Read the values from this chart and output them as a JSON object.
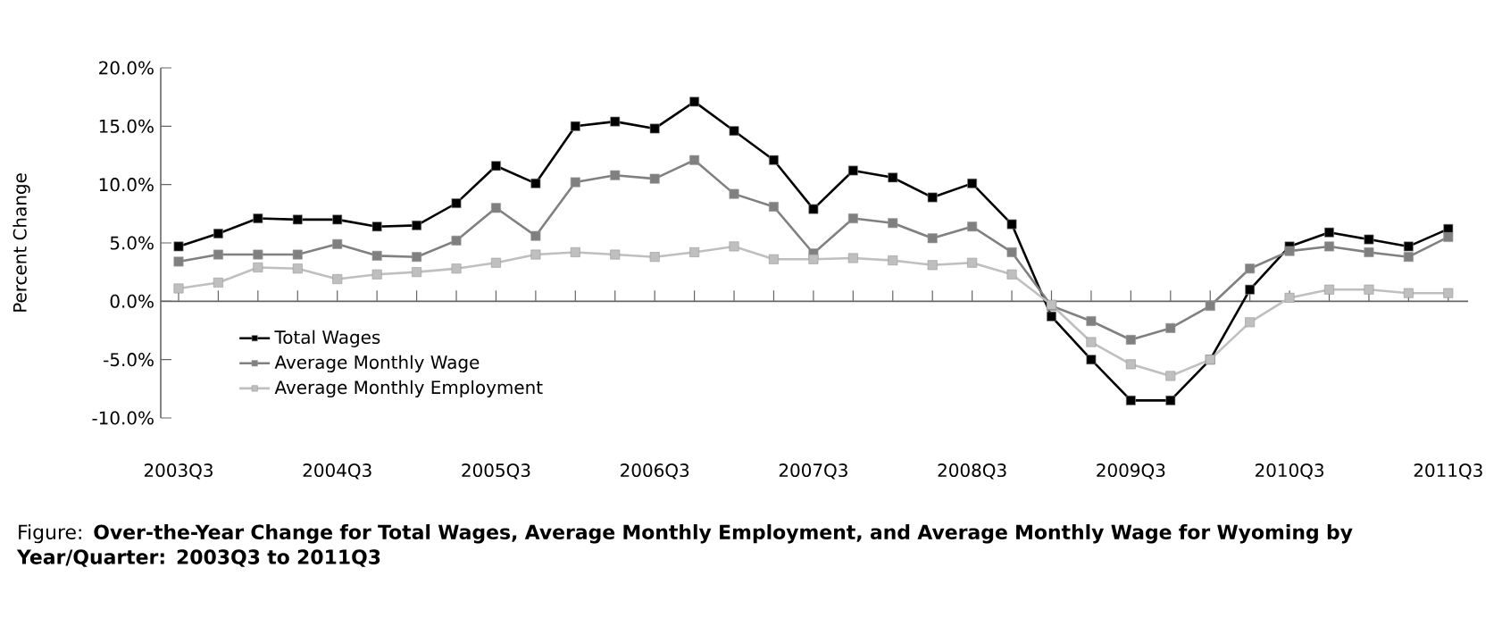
{
  "chart_data": {
    "type": "line",
    "title": "Figure: **Over-the-Year Change for Total Wages, Average Monthly Employment, and Average Monthly Wage for Wyoming by Year/Quarter: 2003Q3 to 2011Q3**",
    "ylabel": "Percent Change",
    "categories": [
      "2003Q3",
      null,
      null,
      null,
      "2004Q3",
      null,
      null,
      null,
      "2005Q3",
      null,
      null,
      null,
      "2006Q3",
      null,
      null,
      null,
      "2007Q3",
      null,
      null,
      null,
      "2008Q3",
      null,
      null,
      null,
      "2009Q3",
      null,
      null,
      null,
      "2010Q3",
      null,
      null,
      null,
      "2011Q3"
    ],
    "series": [
      {
        "name": "Total Wages",
        "color": "#000000",
        "values": [
          4.7,
          5.8,
          7.1,
          7.0,
          7.0,
          6.4,
          6.5,
          8.4,
          11.6,
          10.1,
          15.0,
          15.4,
          14.8,
          17.1,
          14.6,
          12.1,
          7.9,
          11.2,
          10.6,
          8.9,
          10.1,
          6.6,
          -1.3,
          -5.0,
          -8.5,
          -8.5,
          -5.0,
          1.0,
          4.7,
          5.9,
          5.3,
          4.7,
          6.2
        ]
      },
      {
        "name": "Average Monthly Wage",
        "color": "#808080",
        "values": [
          3.4,
          4.0,
          4.0,
          4.0,
          4.9,
          3.9,
          3.8,
          5.2,
          8.0,
          5.6,
          10.2,
          10.8,
          10.5,
          12.1,
          9.2,
          8.1,
          4.1,
          7.1,
          6.7,
          5.4,
          6.4,
          4.2,
          -0.4,
          -1.7,
          -3.3,
          -2.3,
          -0.4,
          2.8,
          4.3,
          4.7,
          4.2,
          3.8,
          5.5
        ]
      },
      {
        "name": "Average Monthly Employment",
        "color": "#bfbfbf",
        "values": [
          1.1,
          1.6,
          2.9,
          2.8,
          1.9,
          2.3,
          2.5,
          2.8,
          3.3,
          4.0,
          4.2,
          4.0,
          3.8,
          4.2,
          4.7,
          3.6,
          3.6,
          3.7,
          3.5,
          3.1,
          3.3,
          2.3,
          -0.3,
          -3.5,
          -5.4,
          -6.4,
          -5.0,
          -1.8,
          0.3,
          1.0,
          1.0,
          0.7,
          0.7
        ]
      }
    ],
    "ylim": [
      -10,
      20
    ],
    "yticks": [
      {
        "value": -10,
        "label": "-10.0%"
      },
      {
        "value": -5,
        "label": "-5.0%"
      },
      {
        "value": 0,
        "label": "0.0%"
      },
      {
        "value": 5,
        "label": "5.0%"
      },
      {
        "value": 10,
        "label": "10.0%"
      },
      {
        "value": 15,
        "label": "15.0%"
      },
      {
        "value": 20,
        "label": "20.0%"
      }
    ],
    "legend": "bottom left",
    "marker": "square",
    "line_style": "solid"
  }
}
